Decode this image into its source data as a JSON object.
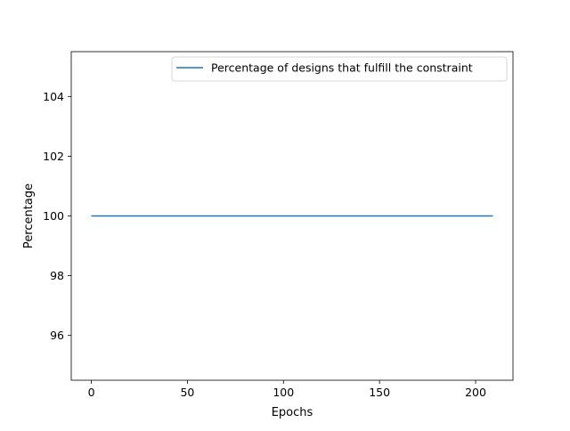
{
  "chart_data": {
    "type": "line",
    "title": "",
    "xlabel": "Epochs",
    "ylabel": "Percentage",
    "xlim": [
      -10.45,
      219.45
    ],
    "ylim": [
      94.5,
      105.5
    ],
    "xticks": [
      0,
      50,
      100,
      150,
      200
    ],
    "yticks": [
      96,
      98,
      100,
      102,
      104
    ],
    "xtick_labels": [
      "0",
      "50",
      "100",
      "150",
      "200"
    ],
    "ytick_labels": [
      "96",
      "98",
      "100",
      "102",
      "104"
    ],
    "grid": false,
    "legend_position": "top-right",
    "series": [
      {
        "name": "Percentage of designs that fulfill the constraint",
        "color": "#1f77b4",
        "x": [
          0,
          209
        ],
        "y": [
          100,
          100
        ]
      }
    ]
  }
}
